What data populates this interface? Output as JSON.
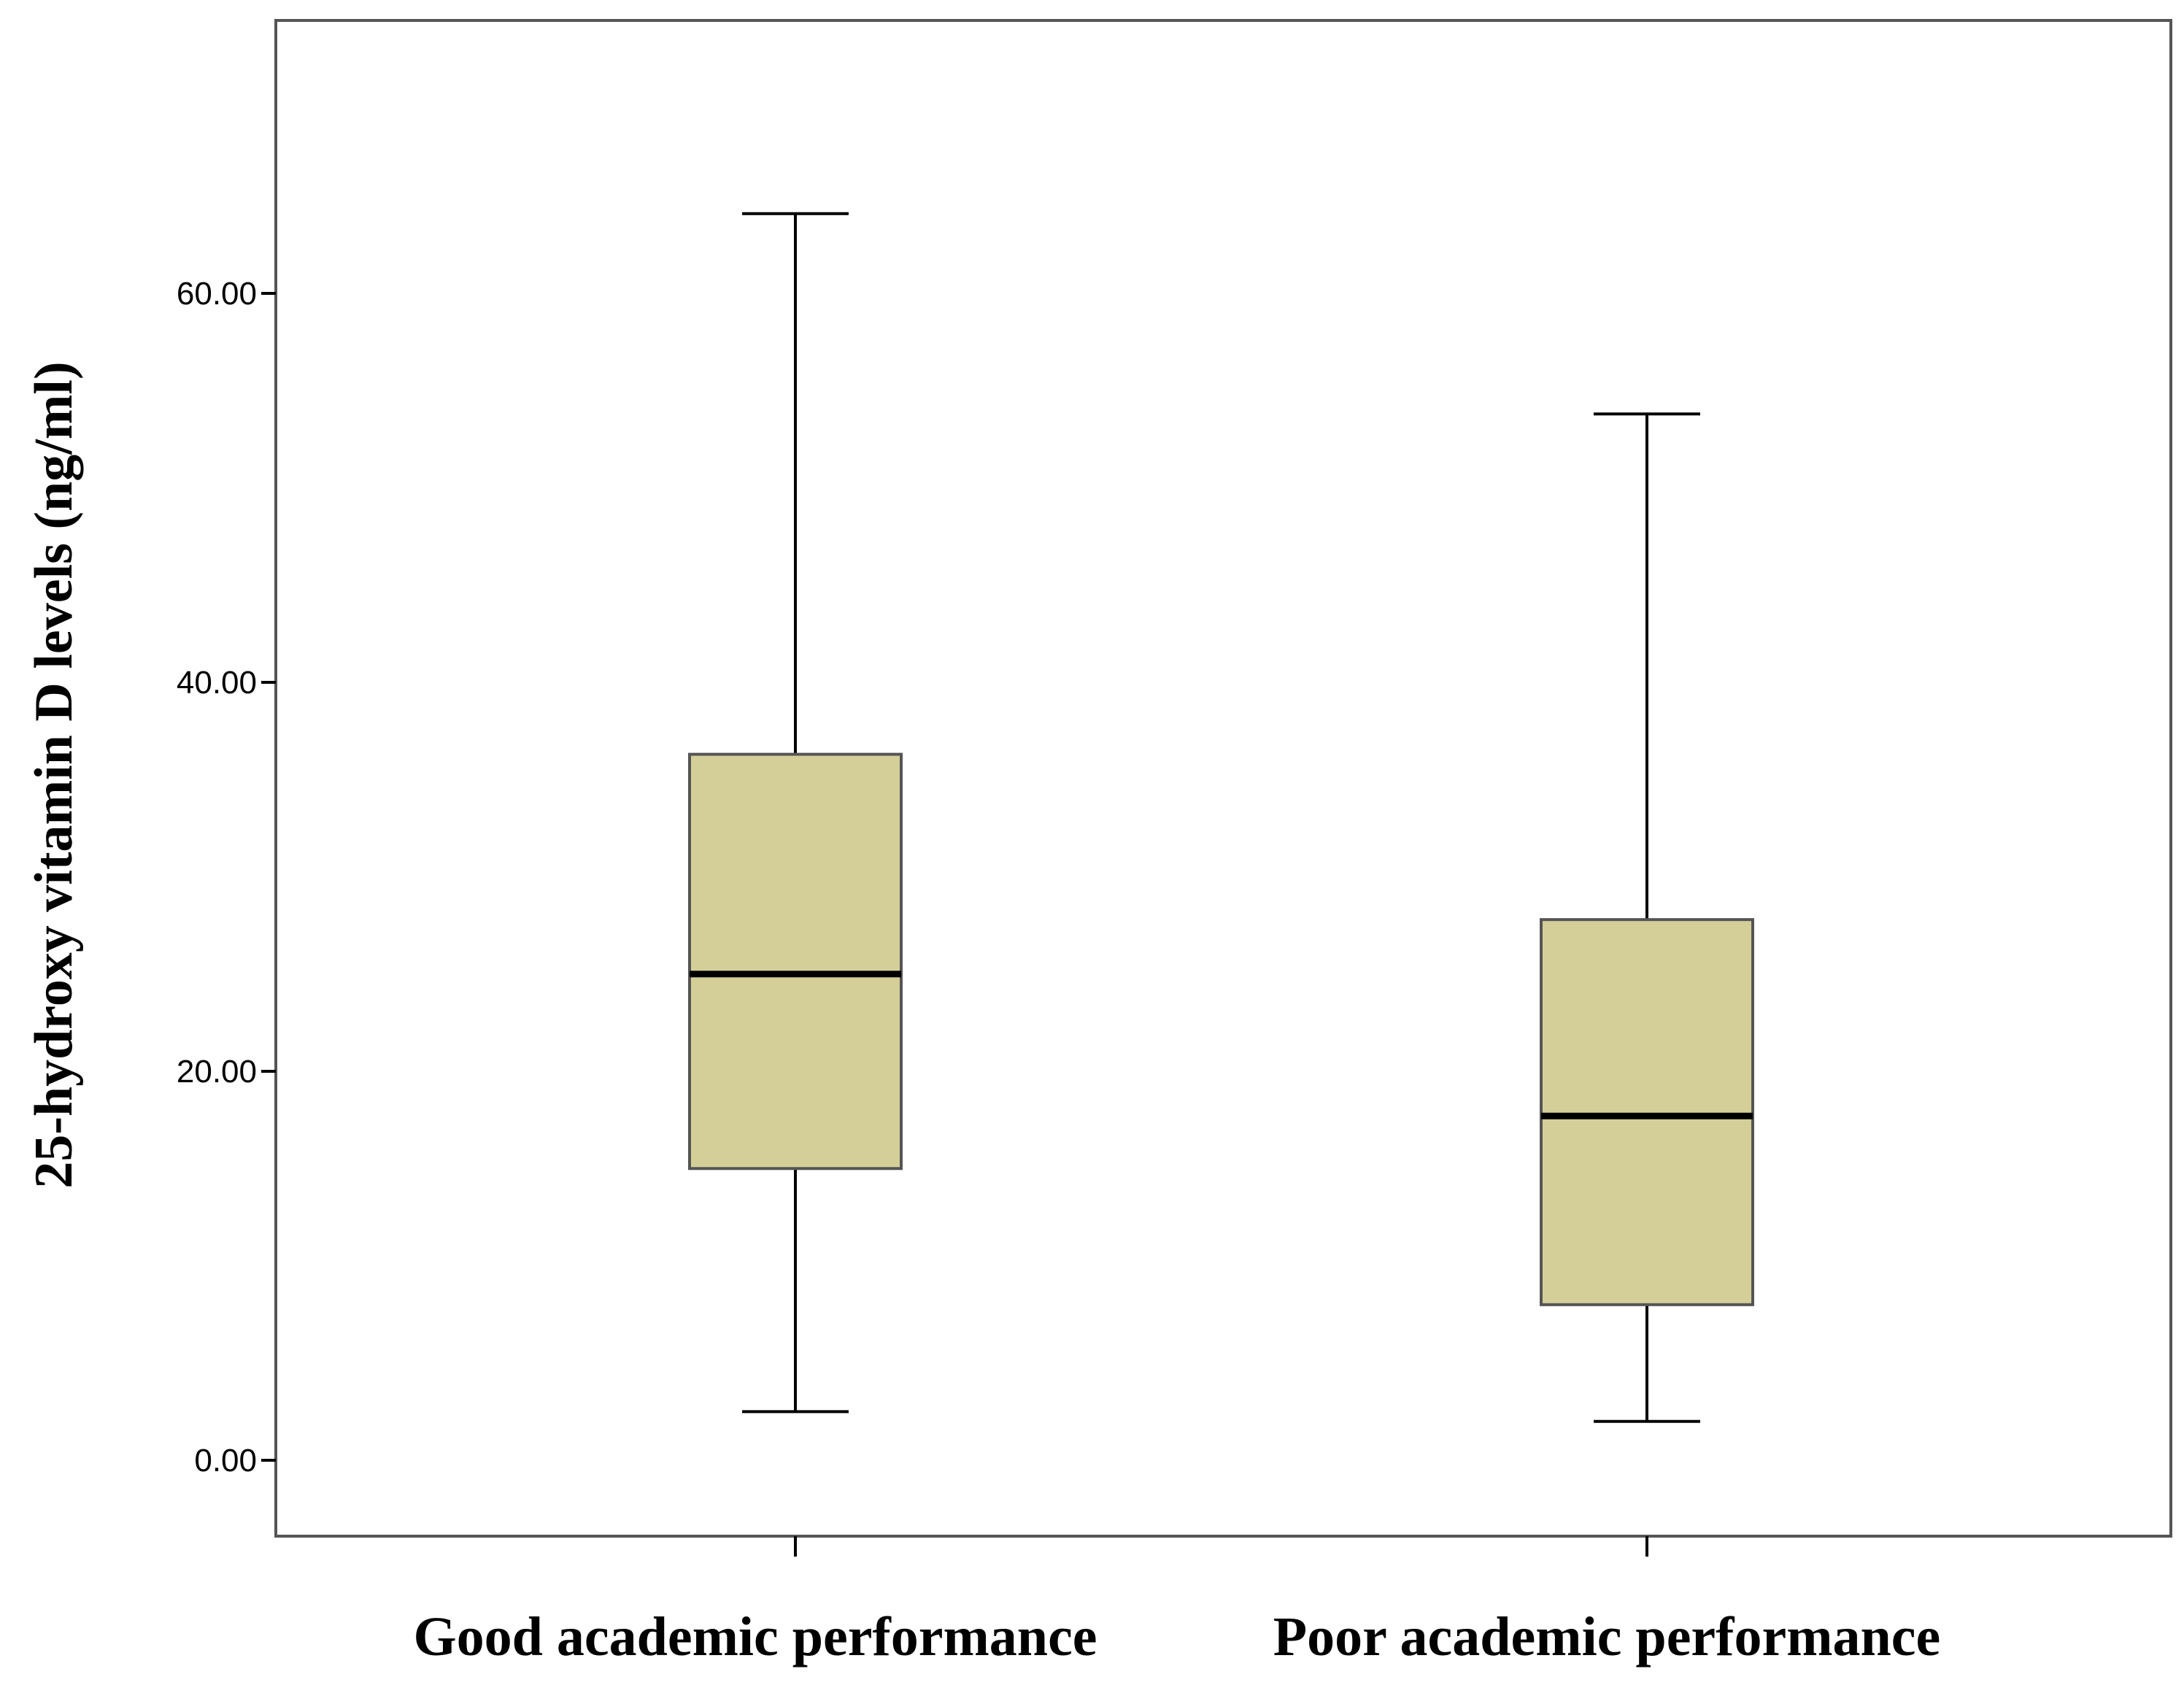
{
  "chart_data": {
    "type": "box",
    "ylabel": "25-hydroxy vitamin D levels (ng/ml)",
    "xlabel": "",
    "ylim": [
      -4,
      74
    ],
    "yticks": [
      0,
      20,
      40,
      60
    ],
    "ytick_labels": [
      "0.00",
      "20.00",
      "40.00",
      "60.00"
    ],
    "categories": [
      "Good academic performance",
      "Poor academic performance"
    ],
    "boxes": [
      {
        "category": "Good academic performance",
        "min": 2.5,
        "q1": 15.0,
        "median": 25.0,
        "q3": 36.3,
        "max": 64.1
      },
      {
        "category": "Poor academic performance",
        "min": 2.0,
        "q1": 8.0,
        "median": 17.7,
        "q3": 27.8,
        "max": 53.8
      }
    ],
    "box_color": "#D4CF98",
    "grid": false,
    "legend": "none"
  }
}
